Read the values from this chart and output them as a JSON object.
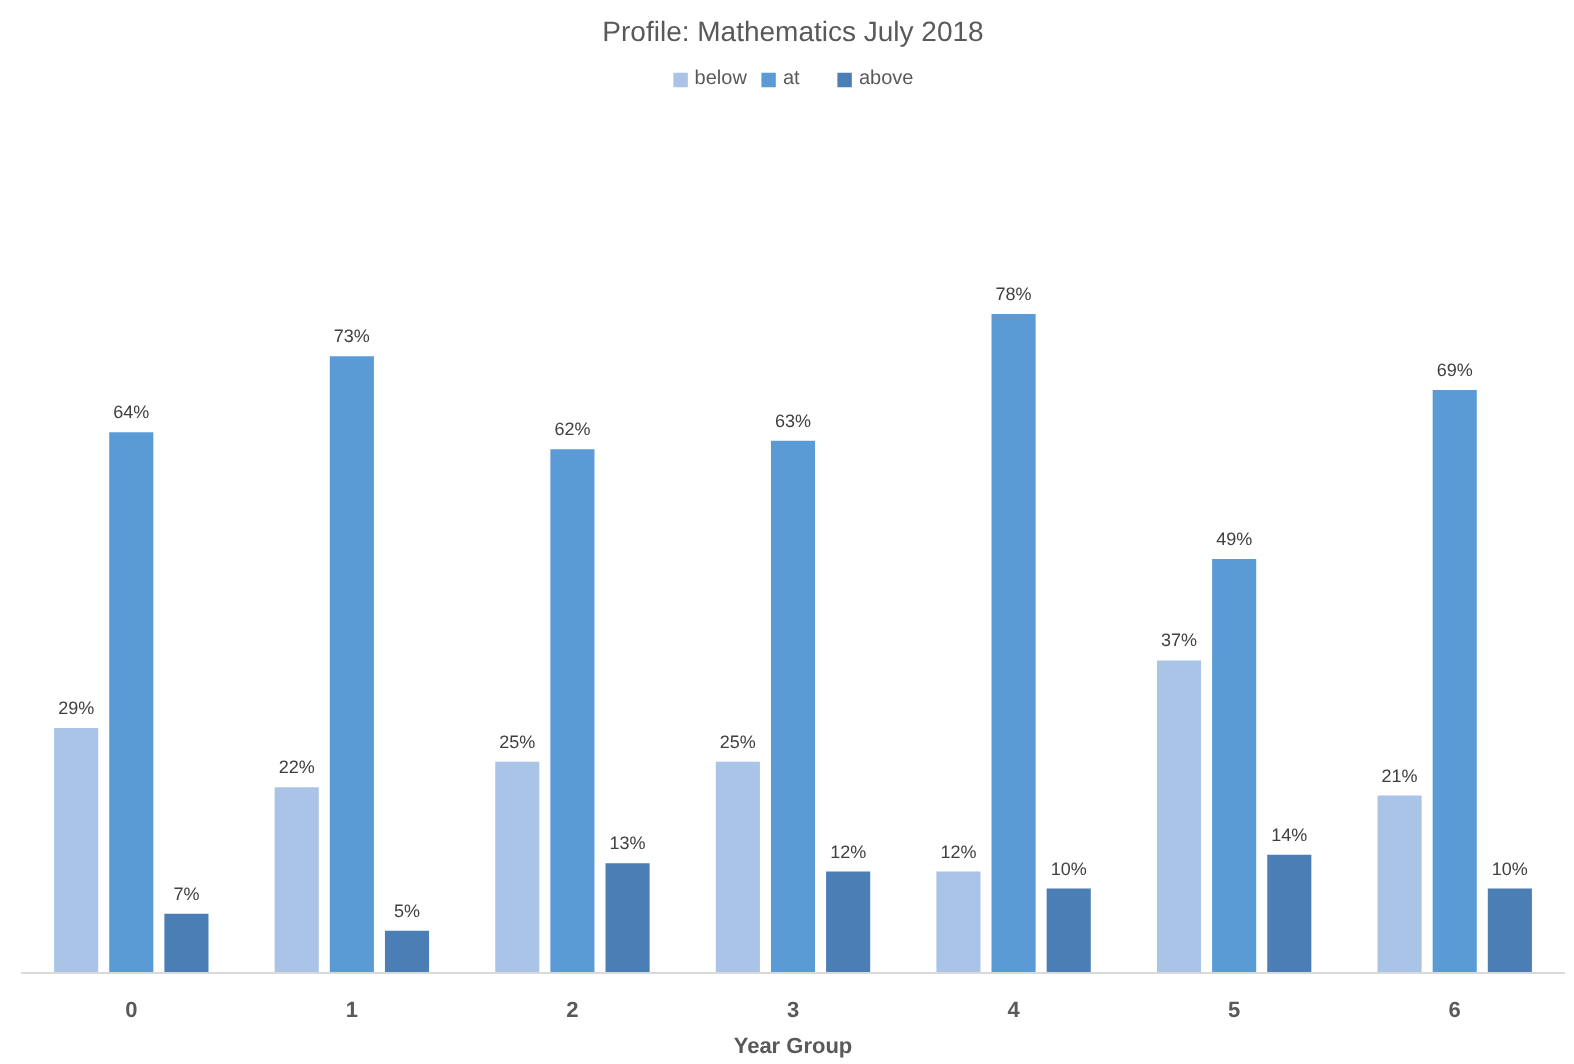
{
  "chart_data": {
    "type": "bar",
    "title": "Profile: Mathematics July 2018",
    "xlabel": "Year Group",
    "categories": [
      "0",
      "1",
      "2",
      "3",
      "4",
      "5",
      "6"
    ],
    "series": [
      {
        "name": "below",
        "color": "#a9c4e6",
        "values": [
          29,
          22,
          25,
          25,
          12,
          37,
          21
        ],
        "value_labels": [
          "29%",
          "22%",
          "25%",
          "25%",
          "12%",
          "37%",
          "21%"
        ]
      },
      {
        "name": "at",
        "color": "#5b9bd5",
        "values": [
          64,
          73,
          62,
          63,
          78,
          49,
          69
        ],
        "value_labels": [
          "64%",
          "73%",
          "62%",
          "63%",
          "78%",
          "49%",
          "69%"
        ]
      },
      {
        "name": "above",
        "color": "#4a7eb5",
        "values": [
          7,
          5,
          13,
          12,
          10,
          14,
          10
        ],
        "value_labels": [
          "7%",
          "5%",
          "13%",
          "12%",
          "10%",
          "14%",
          "10%"
        ]
      }
    ],
    "legend": "top"
  }
}
